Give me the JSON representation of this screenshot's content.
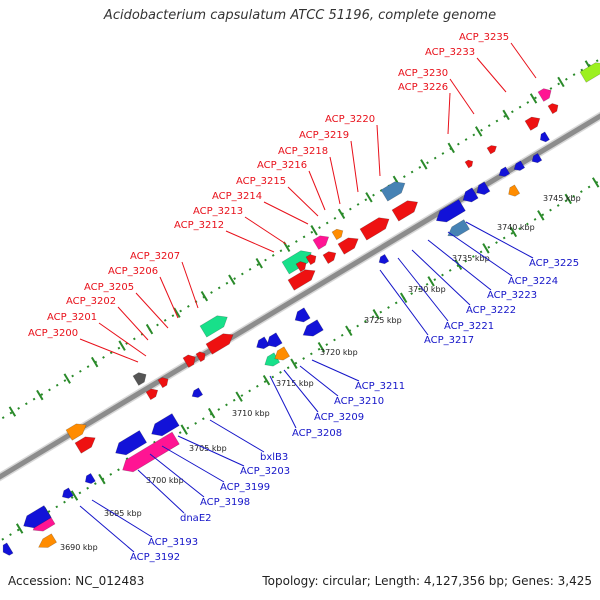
{
  "title": "Acidobacterium capsulatum ATCC 51196, complete genome",
  "footer": {
    "accession": "Accession: NC_012483",
    "stats": "Topology: circular; Length: 4,127,356 bp; Genes: 3,425"
  },
  "kbp_ticks": [
    "3690 kbp",
    "3695 kbp",
    "3700 kbp",
    "3705 kbp",
    "3710 kbp",
    "3715 kbp",
    "3720 kbp",
    "3725 kbp",
    "3730 kbp",
    "3735 kbp",
    "3740 kbp",
    "3745 kbp"
  ],
  "forward_genes": [
    "ACP_3200",
    "ACP_3201",
    "ACP_3202",
    "ACP_3205",
    "ACP_3206",
    "ACP_3207",
    "ACP_3212",
    "ACP_3213",
    "ACP_3214",
    "ACP_3215",
    "ACP_3216",
    "ACP_3218",
    "ACP_3219",
    "ACP_3220",
    "ACP_3226",
    "ACP_3230",
    "ACP_3233",
    "ACP_3235"
  ],
  "reverse_genes": [
    "ACP_3192",
    "ACP_3193",
    "dnaE2",
    "ACP_3198",
    "ACP_3199",
    "ACP_3203",
    "bxlB3",
    "ACP_3208",
    "ACP_3209",
    "ACP_3210",
    "ACP_3211",
    "ACP_3217",
    "ACP_3221",
    "ACP_3222",
    "ACP_3223",
    "ACP_3224",
    "ACP_3225"
  ],
  "colors": {
    "forward_label": "#e8101a",
    "reverse_label": "#1414c8",
    "forward_feature": "#ee1111",
    "reverse_feature": "#1212d8",
    "backbone": "#8c8c8c",
    "ticks": "#2a8a2a",
    "orange": "#ff8c00",
    "magenta": "#ff1493",
    "green": "#18e08a",
    "steel": "#4682b4",
    "lime": "#9cf020",
    "grey": "#555555"
  }
}
